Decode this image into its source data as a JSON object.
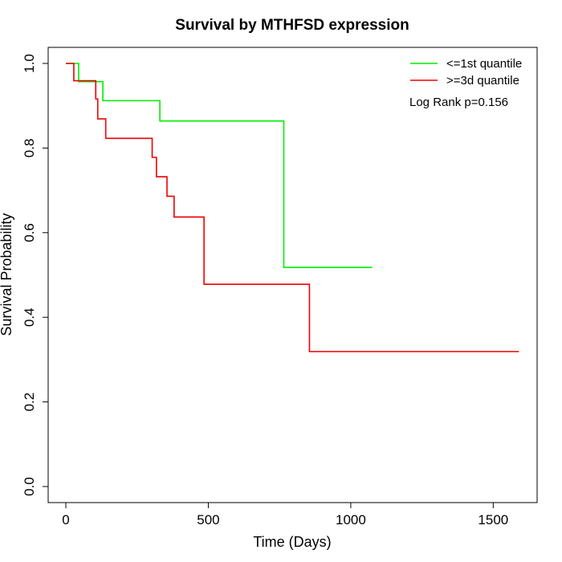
{
  "chart_data": {
    "type": "line",
    "step": true,
    "title": "Survival by MTHFSD expression",
    "xlabel": "Time (Days)",
    "ylabel": "Survival Probability",
    "xlim": [
      0,
      1650
    ],
    "ylim": [
      0,
      1.0
    ],
    "x_ticks": [
      0,
      500,
      1000,
      1500
    ],
    "x_tick_labels": [
      "0",
      "500",
      "1000",
      "1500"
    ],
    "y_ticks": [
      0.0,
      0.2,
      0.4,
      0.6,
      0.8,
      1.0
    ],
    "y_tick_labels": [
      "0.0",
      "0.2",
      "0.4",
      "0.6",
      "0.8",
      "1.0"
    ],
    "grid": false,
    "legend_position": "top-right",
    "annotation": "Log Rank p=0.156",
    "series": [
      {
        "name": "<=1st quantile",
        "color": "#00ee00",
        "x": [
          0,
          45,
          130,
          330,
          765,
          1075
        ],
        "y": [
          1.0,
          0.957,
          0.912,
          0.864,
          0.518,
          0.518
        ]
      },
      {
        "name": ">=3d quantile",
        "color": "#ee0000",
        "x": [
          0,
          28,
          105,
          112,
          140,
          303,
          318,
          355,
          380,
          485,
          855,
          1590
        ],
        "y": [
          1.0,
          0.959,
          0.916,
          0.869,
          0.823,
          0.778,
          0.732,
          0.686,
          0.637,
          0.478,
          0.319,
          0.319
        ]
      }
    ]
  }
}
